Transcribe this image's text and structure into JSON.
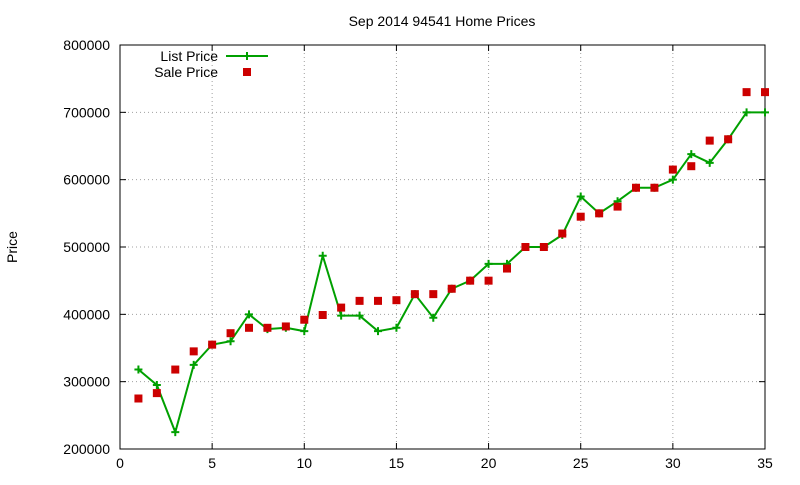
{
  "chart_data": {
    "type": "line",
    "title": "Sep 2014 94541 Home Prices",
    "xlabel": "",
    "ylabel": "Price",
    "xlim": [
      0,
      35
    ],
    "ylim": [
      200000,
      800000
    ],
    "xticks": [
      0,
      5,
      10,
      15,
      20,
      25,
      30,
      35
    ],
    "yticks": [
      200000,
      300000,
      400000,
      500000,
      600000,
      700000,
      800000
    ],
    "grid": true,
    "legend_position": "top-left",
    "x": [
      1,
      2,
      3,
      4,
      5,
      6,
      7,
      8,
      9,
      10,
      11,
      12,
      13,
      14,
      15,
      16,
      17,
      18,
      19,
      20,
      21,
      22,
      23,
      24,
      25,
      26,
      27,
      28,
      29,
      30,
      31,
      32,
      33,
      34,
      35
    ],
    "series": [
      {
        "name": "List Price",
        "style": "line-plus",
        "color": "#00a000",
        "values": [
          318000,
          295000,
          225000,
          325000,
          355000,
          360000,
          400000,
          378000,
          380000,
          375000,
          487000,
          398000,
          398000,
          375000,
          380000,
          430000,
          395000,
          438000,
          450000,
          475000,
          475000,
          500000,
          500000,
          518000,
          575000,
          550000,
          568000,
          588000,
          588000,
          600000,
          638000,
          625000,
          660000,
          700000,
          700000
        ]
      },
      {
        "name": "Sale Price",
        "style": "square",
        "color": "#cc0000",
        "values": [
          275000,
          283000,
          318000,
          345000,
          355000,
          372000,
          380000,
          380000,
          382000,
          392000,
          399000,
          410000,
          420000,
          420000,
          421000,
          430000,
          430000,
          438000,
          450000,
          450000,
          468000,
          500000,
          500000,
          520000,
          545000,
          550000,
          560000,
          588000,
          588000,
          615000,
          620000,
          658000,
          660000,
          730000,
          730000
        ]
      }
    ]
  }
}
